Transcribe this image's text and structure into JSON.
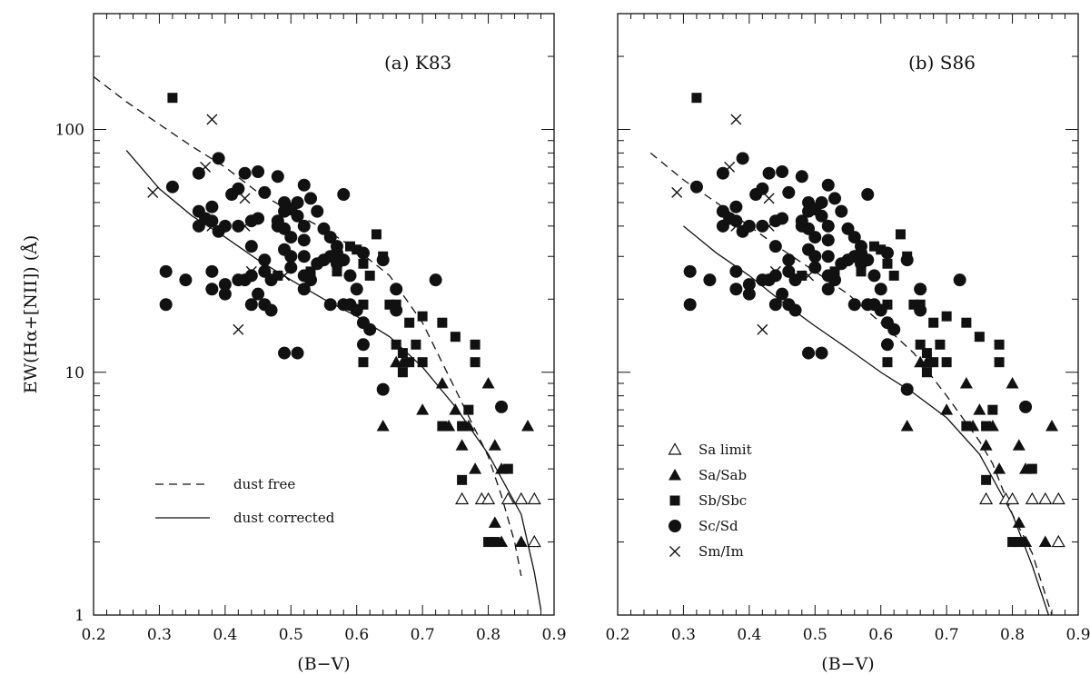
{
  "chart_data": [
    {
      "type": "scatter",
      "panel_label": "(a)   K83",
      "xlabel": "(B−V)",
      "ylabel": "EW(Hα+[NII])  (Å)",
      "xlim": [
        0.2,
        0.9
      ],
      "ylim": [
        1,
        300
      ],
      "yscale": "log",
      "xticks": [
        "0.2",
        "0.3",
        "0.4",
        "0.5",
        "0.6",
        "0.7",
        "0.8",
        "0.9"
      ],
      "yticks": [
        "1",
        "10",
        "100"
      ],
      "legend_entries": [
        {
          "label": "dust free",
          "style": "dashed"
        },
        {
          "label": "dust corrected",
          "style": "solid"
        }
      ],
      "legend_placement": "lower-left",
      "lines": [
        {
          "label": "dust free",
          "style": "dashed",
          "x": [
            0.2,
            0.25,
            0.3,
            0.35,
            0.4,
            0.45,
            0.5,
            0.55,
            0.6,
            0.65,
            0.7,
            0.75,
            0.8,
            0.82,
            0.84,
            0.85
          ],
          "y": [
            165,
            130,
            105,
            85,
            70,
            55,
            46,
            39,
            32,
            25,
            16,
            8.5,
            4.5,
            3.1,
            2.0,
            1.45
          ]
        },
        {
          "label": "dust corrected",
          "style": "solid",
          "x": [
            0.25,
            0.3,
            0.35,
            0.4,
            0.45,
            0.5,
            0.55,
            0.6,
            0.65,
            0.7,
            0.75,
            0.8,
            0.85,
            0.87,
            0.88
          ],
          "y": [
            82,
            57,
            44,
            36,
            29,
            24,
            20,
            17,
            14,
            10.5,
            7.2,
            4.6,
            2.6,
            1.5,
            1.05
          ]
        }
      ],
      "series": [
        {
          "name": "Sa limit",
          "marker": "open-triangle",
          "points": [
            [
              0.76,
              3
            ],
            [
              0.79,
              3
            ],
            [
              0.8,
              3
            ],
            [
              0.83,
              3
            ],
            [
              0.85,
              3
            ],
            [
              0.87,
              3
            ],
            [
              0.87,
              2
            ]
          ]
        },
        {
          "name": "Sa/Sab",
          "marker": "filled-triangle",
          "points": [
            [
              0.64,
              6
            ],
            [
              0.66,
              11
            ],
            [
              0.67,
              11
            ],
            [
              0.7,
              7
            ],
            [
              0.73,
              9
            ],
            [
              0.74,
              6
            ],
            [
              0.75,
              7
            ],
            [
              0.76,
              5
            ],
            [
              0.77,
              6
            ],
            [
              0.78,
              4
            ],
            [
              0.8,
              9
            ],
            [
              0.81,
              5
            ],
            [
              0.81,
              2.4
            ],
            [
              0.82,
              4
            ],
            [
              0.82,
              2
            ],
            [
              0.85,
              2
            ],
            [
              0.86,
              6
            ]
          ]
        },
        {
          "name": "Sb/Sbc",
          "marker": "filled-square",
          "points": [
            [
              0.32,
              135
            ],
            [
              0.48,
              25
            ],
            [
              0.53,
              26
            ],
            [
              0.57,
              26
            ],
            [
              0.59,
              33
            ],
            [
              0.6,
              32
            ],
            [
              0.61,
              28
            ],
            [
              0.61,
              19
            ],
            [
              0.61,
              11
            ],
            [
              0.62,
              25
            ],
            [
              0.63,
              37
            ],
            [
              0.64,
              30
            ],
            [
              0.65,
              19
            ],
            [
              0.66,
              13
            ],
            [
              0.66,
              19
            ],
            [
              0.67,
              10
            ],
            [
              0.67,
              12
            ],
            [
              0.68,
              16
            ],
            [
              0.68,
              11
            ],
            [
              0.69,
              13
            ],
            [
              0.7,
              17
            ],
            [
              0.7,
              11
            ],
            [
              0.73,
              16
            ],
            [
              0.73,
              6
            ],
            [
              0.75,
              14
            ],
            [
              0.76,
              6
            ],
            [
              0.77,
              7
            ],
            [
              0.78,
              13
            ],
            [
              0.78,
              11
            ],
            [
              0.76,
              3.6
            ],
            [
              0.83,
              4
            ],
            [
              0.8,
              2
            ],
            [
              0.81,
              2
            ]
          ]
        },
        {
          "name": "Sc/Sd",
          "marker": "filled-circle",
          "points": [
            [
              0.31,
              26
            ],
            [
              0.31,
              19
            ],
            [
              0.32,
              58
            ],
            [
              0.34,
              24
            ],
            [
              0.36,
              66
            ],
            [
              0.36,
              46
            ],
            [
              0.36,
              40
            ],
            [
              0.37,
              43
            ],
            [
              0.38,
              48
            ],
            [
              0.38,
              42
            ],
            [
              0.38,
              26
            ],
            [
              0.38,
              22
            ],
            [
              0.39,
              76
            ],
            [
              0.39,
              38
            ],
            [
              0.4,
              40
            ],
            [
              0.4,
              23
            ],
            [
              0.4,
              21
            ],
            [
              0.41,
              54
            ],
            [
              0.42,
              57
            ],
            [
              0.42,
              40
            ],
            [
              0.42,
              24
            ],
            [
              0.43,
              66
            ],
            [
              0.43,
              24
            ],
            [
              0.44,
              42
            ],
            [
              0.44,
              33
            ],
            [
              0.44,
              25
            ],
            [
              0.44,
              19
            ],
            [
              0.45,
              67
            ],
            [
              0.45,
              43
            ],
            [
              0.45,
              21
            ],
            [
              0.46,
              55
            ],
            [
              0.46,
              29
            ],
            [
              0.46,
              26
            ],
            [
              0.46,
              19
            ],
            [
              0.47,
              24
            ],
            [
              0.47,
              18
            ],
            [
              0.48,
              64
            ],
            [
              0.48,
              42
            ],
            [
              0.48,
              40
            ],
            [
              0.49,
              50
            ],
            [
              0.49,
              46
            ],
            [
              0.49,
              39
            ],
            [
              0.49,
              32
            ],
            [
              0.49,
              12
            ],
            [
              0.5,
              47
            ],
            [
              0.5,
              36
            ],
            [
              0.5,
              30
            ],
            [
              0.5,
              27
            ],
            [
              0.51,
              50
            ],
            [
              0.51,
              44
            ],
            [
              0.51,
              12
            ],
            [
              0.52,
              59
            ],
            [
              0.52,
              40
            ],
            [
              0.52,
              35
            ],
            [
              0.52,
              30
            ],
            [
              0.52,
              25
            ],
            [
              0.52,
              22
            ],
            [
              0.53,
              52
            ],
            [
              0.53,
              24
            ],
            [
              0.54,
              46
            ],
            [
              0.54,
              28
            ],
            [
              0.55,
              39
            ],
            [
              0.55,
              29
            ],
            [
              0.56,
              36
            ],
            [
              0.56,
              30
            ],
            [
              0.56,
              19
            ],
            [
              0.57,
              33
            ],
            [
              0.57,
              31
            ],
            [
              0.57,
              28
            ],
            [
              0.58,
              54
            ],
            [
              0.58,
              29
            ],
            [
              0.58,
              19
            ],
            [
              0.59,
              25
            ],
            [
              0.59,
              19
            ],
            [
              0.6,
              22
            ],
            [
              0.6,
              18
            ],
            [
              0.61,
              31
            ],
            [
              0.61,
              16
            ],
            [
              0.61,
              13
            ],
            [
              0.62,
              15
            ],
            [
              0.64,
              29
            ],
            [
              0.64,
              8.5
            ],
            [
              0.66,
              22
            ],
            [
              0.66,
              18
            ],
            [
              0.72,
              24
            ],
            [
              0.82,
              7.2
            ]
          ]
        },
        {
          "name": "Sm/Im",
          "marker": "cross",
          "points": [
            [
              0.29,
              55
            ],
            [
              0.37,
              70
            ],
            [
              0.38,
              110
            ],
            [
              0.38,
              40
            ],
            [
              0.42,
              15
            ],
            [
              0.43,
              52
            ],
            [
              0.43,
              40
            ],
            [
              0.44,
              26
            ],
            [
              0.49,
              25
            ]
          ]
        }
      ]
    },
    {
      "type": "scatter",
      "panel_label": "(b)   S86",
      "xlabel": "(B−V)",
      "xlim": [
        0.2,
        0.9
      ],
      "ylim": [
        1,
        300
      ],
      "yscale": "log",
      "xticks": [
        "0.2",
        "0.3",
        "0.4",
        "0.5",
        "0.6",
        "0.7",
        "0.8",
        "0.9"
      ],
      "legend_entries": [
        {
          "label": "Sa limit",
          "marker": "open-triangle"
        },
        {
          "label": "Sa/Sab",
          "marker": "filled-triangle"
        },
        {
          "label": "Sb/Sbc",
          "marker": "filled-square"
        },
        {
          "label": "Sc/Sd",
          "marker": "filled-circle"
        },
        {
          "label": "Sm/Im",
          "marker": "cross"
        }
      ],
      "legend_placement": "lower-left",
      "lines": [
        {
          "label": "dust free",
          "style": "dashed",
          "x": [
            0.25,
            0.3,
            0.35,
            0.4,
            0.45,
            0.5,
            0.55,
            0.6,
            0.65,
            0.7,
            0.75,
            0.77,
            0.8,
            0.83,
            0.86
          ],
          "y": [
            80,
            62,
            50,
            40,
            32,
            26,
            21,
            16,
            12,
            8,
            5.2,
            4.2,
            2.6,
            1.8,
            1.0
          ]
        },
        {
          "label": "dust corrected",
          "style": "solid",
          "x": [
            0.3,
            0.35,
            0.4,
            0.45,
            0.5,
            0.55,
            0.6,
            0.65,
            0.7,
            0.75,
            0.8,
            0.83,
            0.855
          ],
          "y": [
            40,
            31,
            25,
            19.5,
            15.5,
            12.5,
            10,
            8.2,
            6.5,
            4.6,
            2.6,
            1.6,
            1.0
          ]
        }
      ],
      "series": "same_as_panel_a"
    }
  ]
}
